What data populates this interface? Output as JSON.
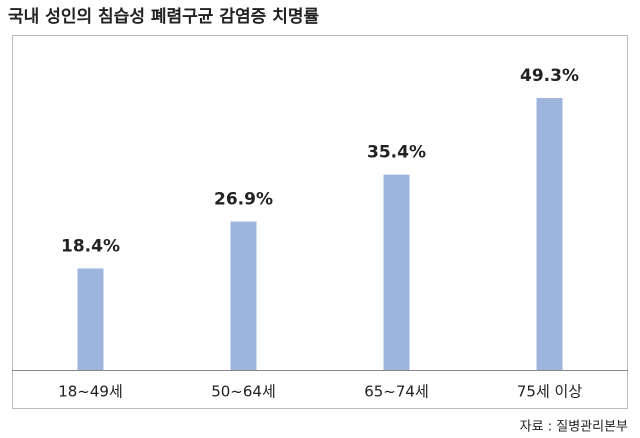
{
  "chart_data": {
    "type": "bar",
    "title": "국내 성인의 침습성 폐렴구균 감염증 치명률",
    "categories": [
      "18~49세",
      "50~64세",
      "65~74세",
      "75세 이상"
    ],
    "values": [
      18.4,
      26.9,
      35.4,
      49.3
    ],
    "value_labels": [
      "18.4%",
      "26.9%",
      "35.4%",
      "49.3%"
    ],
    "color": "#9db4dc",
    "source": "자료 : 질병관리본부"
  }
}
